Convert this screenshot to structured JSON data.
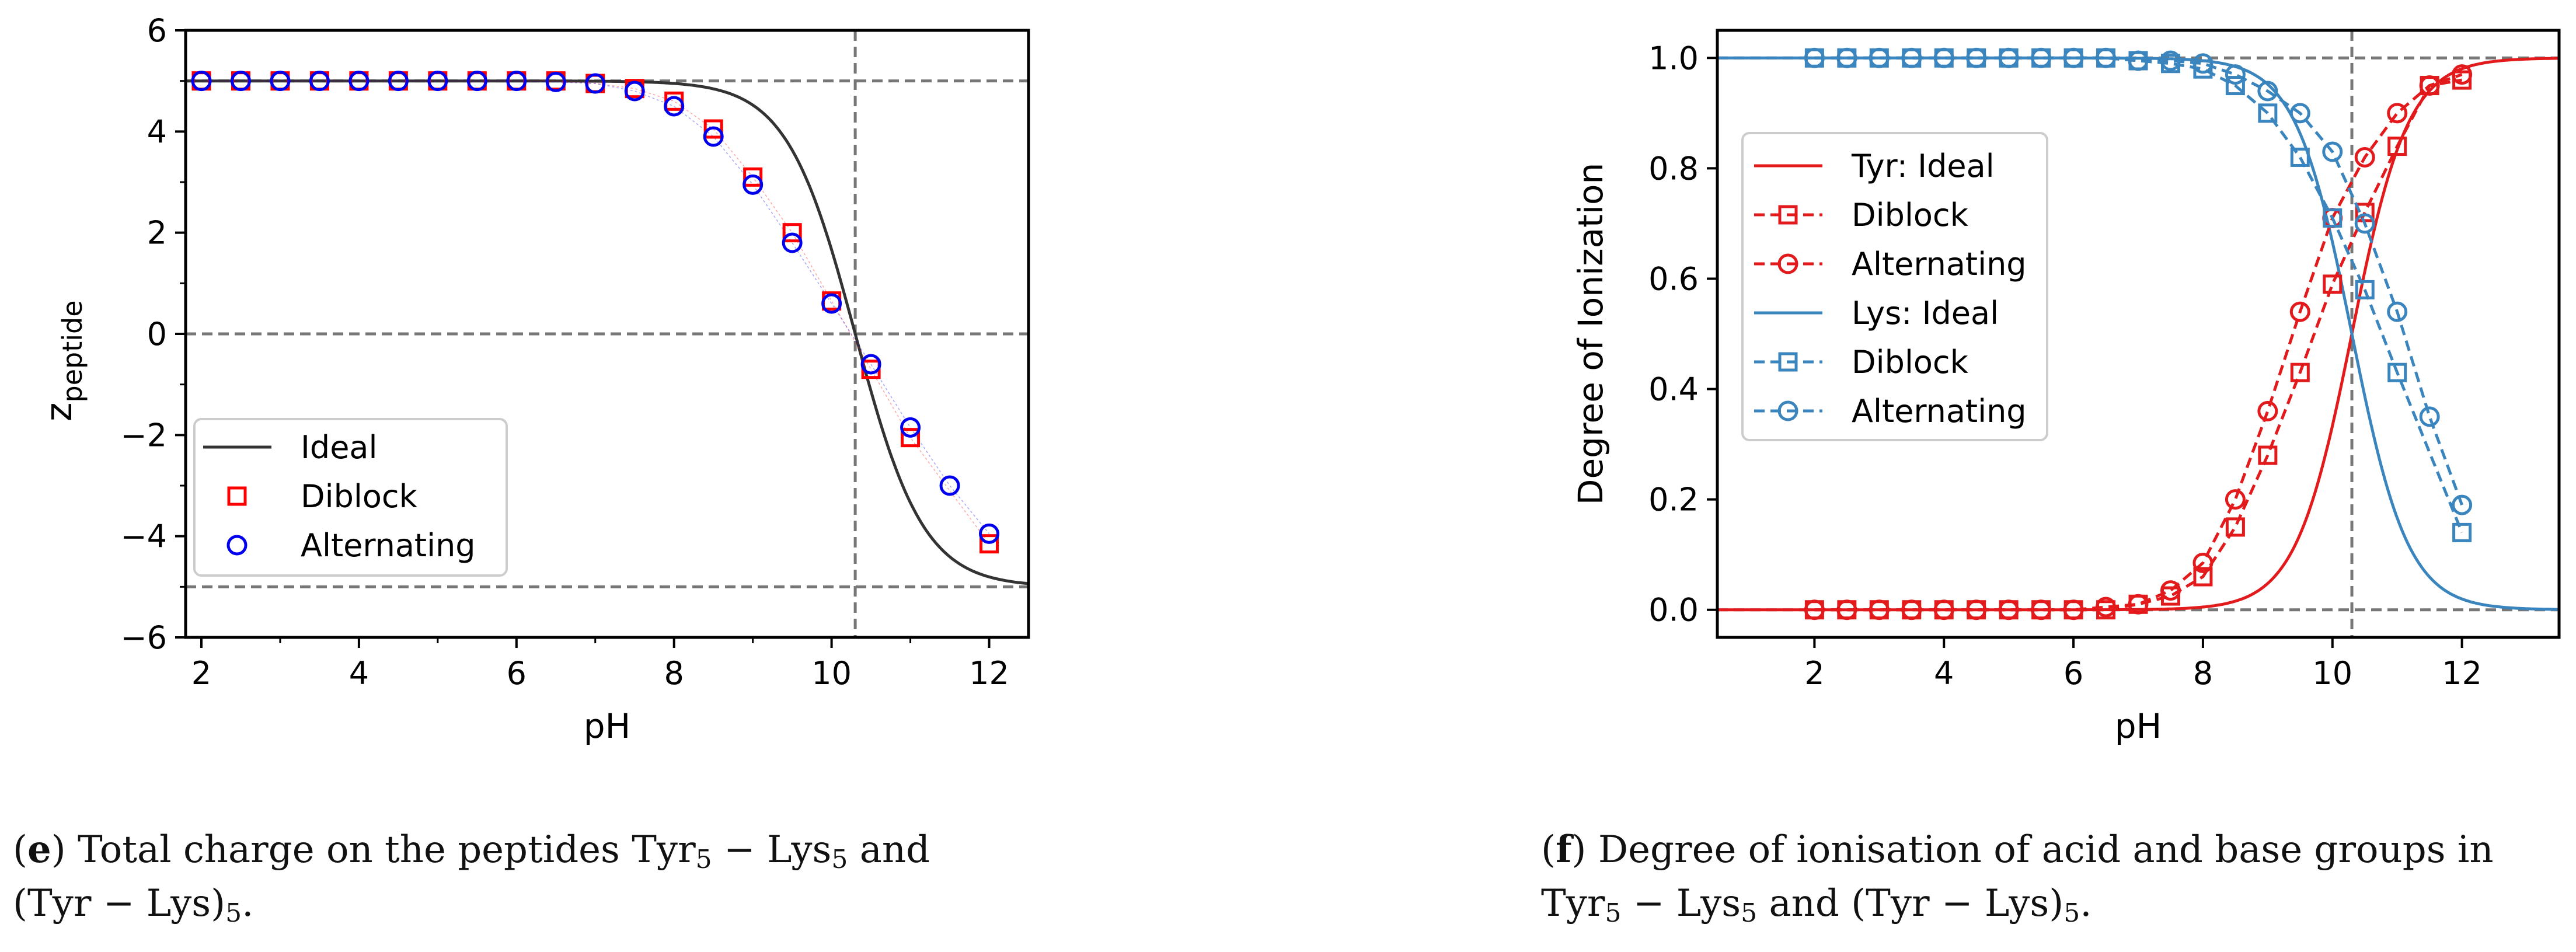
{
  "chart_data": [
    {
      "type": "scatter",
      "panel": "e",
      "title": "",
      "xlabel": "pH",
      "ylabel_main": "z",
      "ylabel_sub": "peptide",
      "xlim": [
        1.8,
        12.5
      ],
      "ylim": [
        -6,
        6
      ],
      "xticks": [
        2,
        4,
        6,
        8,
        10,
        12
      ],
      "yticks": [
        -6,
        -4,
        -2,
        0,
        2,
        4,
        6
      ],
      "grid": false,
      "legend_position": "lower-left",
      "reference_lines": {
        "horizontal": [
          5,
          0,
          -5
        ],
        "vertical": [
          10.3
        ]
      },
      "ideal": {
        "name": "Ideal",
        "color": "#333333",
        "pKa_acid": 10.3,
        "pKa_base": 10.3,
        "n_acid": 5,
        "n_base": 5
      },
      "series": [
        {
          "name": "Diblock",
          "marker": "square",
          "color": "#ff0000",
          "x": [
            2,
            2.5,
            3,
            3.5,
            4,
            4.5,
            5,
            5.5,
            6,
            6.5,
            7,
            7.5,
            8,
            8.5,
            9,
            9.5,
            10,
            10.5,
            11,
            12
          ],
          "y": [
            5,
            5,
            5,
            5,
            5,
            5,
            5,
            5,
            5,
            5,
            4.95,
            4.85,
            4.6,
            4.05,
            3.1,
            2.0,
            0.65,
            -0.7,
            -2.05,
            -4.15
          ]
        },
        {
          "name": "Alternating",
          "marker": "circle",
          "color": "#0000ee",
          "x": [
            2,
            2.5,
            3,
            3.5,
            4,
            4.5,
            5,
            5.5,
            6,
            6.5,
            7,
            7.5,
            8,
            8.5,
            9,
            9.5,
            10,
            10.5,
            11,
            11.5,
            12
          ],
          "y": [
            5,
            5,
            5,
            5,
            5,
            5,
            5,
            5,
            5,
            4.98,
            4.95,
            4.8,
            4.5,
            3.9,
            2.95,
            1.8,
            0.6,
            -0.6,
            -1.85,
            -3.0,
            -3.95
          ]
        }
      ],
      "caption": {
        "label": "e",
        "line1_a": "Total charge on the peptides Tyr",
        "s1": "5",
        "line1_b": " − Lys",
        "s2": "5",
        "line1_c": " and",
        "line2_a": "(Tyr − Lys)",
        "s3": "5",
        "line2_b": "."
      }
    },
    {
      "type": "line",
      "panel": "f",
      "title": "",
      "xlabel": "pH",
      "ylabel": "Degree of Ionization",
      "xlim": [
        0.5,
        13.5
      ],
      "ylim": [
        -0.05,
        1.05
      ],
      "xticks": [
        2,
        4,
        6,
        8,
        10,
        12
      ],
      "yticks": [
        0.0,
        0.2,
        0.4,
        0.6,
        0.8,
        1.0
      ],
      "ytick_labels": [
        "0.0",
        "0.2",
        "0.4",
        "0.6",
        "0.8",
        "1.0"
      ],
      "grid": false,
      "legend_position": "center-left",
      "reference_lines": {
        "horizontal": [
          1.0,
          0.0
        ],
        "vertical": [
          10.3
        ]
      },
      "ideal_curves": [
        {
          "name": "Tyr: Ideal",
          "kind": "acid",
          "pKa": 10.3,
          "color": "#e31a1c"
        },
        {
          "name": "Lys: Ideal",
          "kind": "base",
          "pKa": 10.3,
          "color": "#3a85be"
        }
      ],
      "series": [
        {
          "name": "Diblock",
          "group": "Tyr",
          "marker": "square",
          "color": "#e31a1c",
          "x": [
            2,
            2.5,
            3,
            3.5,
            4,
            4.5,
            5,
            5.5,
            6,
            6.5,
            7,
            7.5,
            8,
            8.5,
            9,
            9.5,
            10,
            10.5,
            11,
            11.5,
            12
          ],
          "y": [
            0,
            0,
            0,
            0,
            0,
            0,
            0,
            0,
            0,
            0,
            0.01,
            0.025,
            0.06,
            0.15,
            0.28,
            0.43,
            0.59,
            0.72,
            0.84,
            0.95,
            0.96
          ]
        },
        {
          "name": "Alternating",
          "group": "Tyr",
          "marker": "circle",
          "color": "#e31a1c",
          "x": [
            2,
            2.5,
            3,
            3.5,
            4,
            4.5,
            5,
            5.5,
            6,
            6.5,
            7,
            7.5,
            8,
            8.5,
            9,
            9.5,
            10,
            10.5,
            11,
            11.5,
            12
          ],
          "y": [
            0,
            0,
            0,
            0,
            0,
            0,
            0,
            0,
            0,
            0.005,
            0.01,
            0.035,
            0.085,
            0.2,
            0.36,
            0.54,
            0.71,
            0.82,
            0.9,
            0.95,
            0.97
          ]
        },
        {
          "name": "Diblock",
          "group": "Lys",
          "marker": "square",
          "color": "#3a85be",
          "x": [
            2,
            2.5,
            3,
            3.5,
            4,
            4.5,
            5,
            5.5,
            6,
            6.5,
            7,
            7.5,
            8,
            8.5,
            9,
            9.5,
            10,
            10.5,
            11,
            12
          ],
          "y": [
            1,
            1,
            1,
            1,
            1,
            1,
            1,
            1,
            1,
            1,
            0.995,
            0.99,
            0.98,
            0.95,
            0.9,
            0.82,
            0.71,
            0.58,
            0.43,
            0.14
          ]
        },
        {
          "name": "Alternating",
          "group": "Lys",
          "marker": "circle",
          "color": "#3a85be",
          "x": [
            2,
            2.5,
            3,
            3.5,
            4,
            4.5,
            5,
            5.5,
            6,
            6.5,
            7,
            7.5,
            8,
            8.5,
            9,
            9.5,
            10,
            10.5,
            11,
            11.5,
            12
          ],
          "y": [
            1,
            1,
            1,
            1,
            1,
            1,
            1,
            1,
            1,
            1,
            0.995,
            0.995,
            0.99,
            0.97,
            0.94,
            0.9,
            0.83,
            0.7,
            0.54,
            0.35,
            0.19
          ]
        }
      ],
      "legend": [
        {
          "label": "Tyr: Ideal",
          "color": "#e31a1c",
          "style": "solid",
          "marker": "none"
        },
        {
          "label": "Diblock",
          "color": "#e31a1c",
          "style": "dashed",
          "marker": "square"
        },
        {
          "label": "Alternating",
          "color": "#e31a1c",
          "style": "dashed",
          "marker": "circle"
        },
        {
          "label": "Lys: Ideal",
          "color": "#3a85be",
          "style": "solid",
          "marker": "none"
        },
        {
          "label": "Diblock",
          "color": "#3a85be",
          "style": "dashed",
          "marker": "square"
        },
        {
          "label": "Alternating",
          "color": "#3a85be",
          "style": "dashed",
          "marker": "circle"
        }
      ],
      "caption": {
        "label": "f",
        "line1": "Degree of ionisation of acid and base groups in",
        "line2_a": "Tyr",
        "s1": "5",
        "line2_b": " − Lys",
        "s2": "5",
        "line2_c": " and (Tyr − Lys)",
        "s3": "5",
        "line2_d": "."
      }
    }
  ]
}
